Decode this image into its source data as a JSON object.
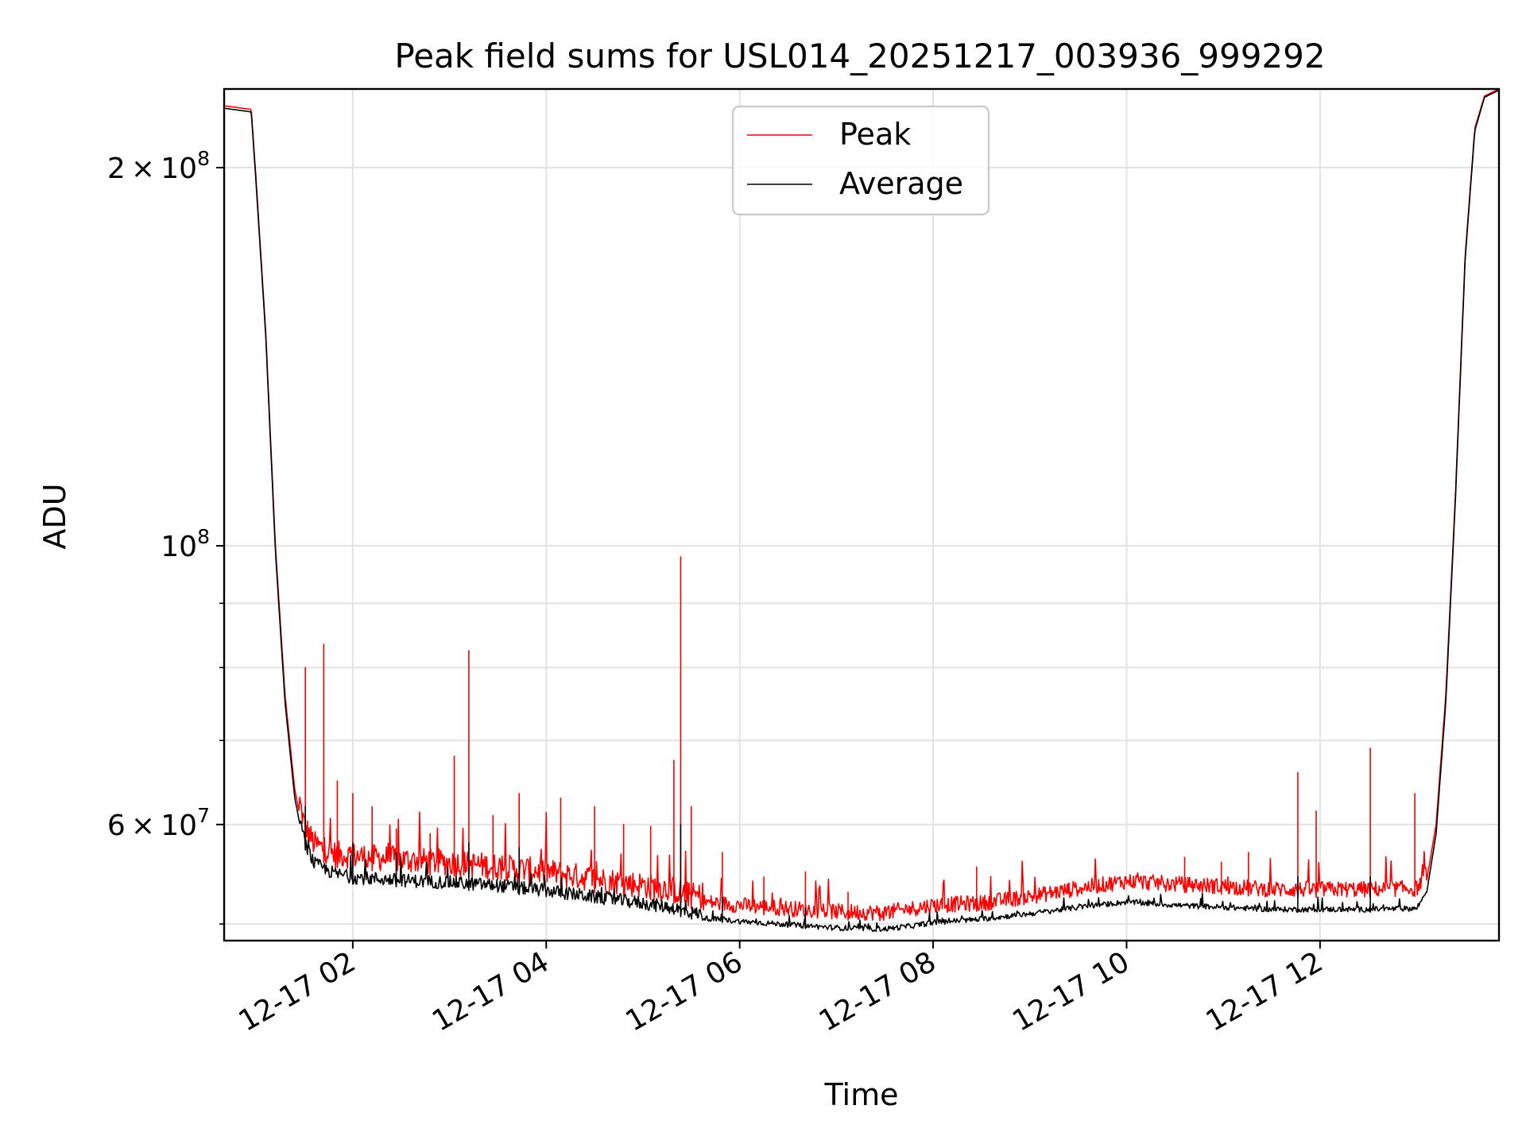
{
  "chart_data": {
    "type": "line",
    "title": "Peak field sums for USL014_20251217_003936_999292",
    "xlabel": "Time",
    "ylabel": "ADU",
    "yscale": "log",
    "xlim": [
      0.67,
      13.85
    ],
    "ylim": [
      48500000,
      231000000
    ],
    "grid": true,
    "legend_position": "upper-center",
    "x_unit": "hours since 2025-12-17 00:00",
    "x_ticks": [
      {
        "value": 2,
        "label": "12-17 02"
      },
      {
        "value": 4,
        "label": "12-17 04"
      },
      {
        "value": 6,
        "label": "12-17 06"
      },
      {
        "value": 8,
        "label": "12-17 08"
      },
      {
        "value": 10,
        "label": "12-17 10"
      },
      {
        "value": 12,
        "label": "12-17 12"
      }
    ],
    "y_major_ticks": [
      {
        "value": 60000000,
        "base": "6 × 10",
        "exp": "7"
      },
      {
        "value": 100000000,
        "base": "10",
        "exp": "8"
      },
      {
        "value": 200000000,
        "base": "2 × 10",
        "exp": "8"
      }
    ],
    "y_minor_ticks": [
      50000000,
      70000000,
      80000000,
      90000000
    ],
    "series": [
      {
        "name": "Peak",
        "color": "#ff0000",
        "baseline": [
          [
            0.67,
            224000000
          ],
          [
            0.95,
            222500000
          ],
          [
            1.0,
            196000000
          ],
          [
            1.1,
            148000000
          ],
          [
            1.2,
            100000000
          ],
          [
            1.3,
            76000000
          ],
          [
            1.4,
            64000000
          ],
          [
            1.5,
            58500000
          ],
          [
            1.6,
            56500000
          ],
          [
            1.8,
            55500000
          ],
          [
            2.0,
            55300000
          ],
          [
            2.5,
            54900000
          ],
          [
            3.0,
            54600000
          ],
          [
            3.5,
            54200000
          ],
          [
            4.0,
            53700000
          ],
          [
            4.5,
            53000000
          ],
          [
            5.0,
            52400000
          ],
          [
            5.3,
            52000000
          ],
          [
            5.5,
            51400000
          ],
          [
            6.0,
            51000000
          ],
          [
            6.5,
            50700000
          ],
          [
            7.0,
            50400000
          ],
          [
            7.5,
            50300000
          ],
          [
            7.8,
            50700000
          ],
          [
            8.0,
            51000000
          ],
          [
            8.5,
            51200000
          ],
          [
            9.0,
            51800000
          ],
          [
            9.5,
            52600000
          ],
          [
            10.0,
            53300000
          ],
          [
            10.5,
            53000000
          ],
          [
            11.0,
            52800000
          ],
          [
            11.5,
            52500000
          ],
          [
            12.0,
            52500000
          ],
          [
            12.5,
            52500000
          ],
          [
            13.0,
            52600000
          ],
          [
            13.1,
            54000000
          ],
          [
            13.2,
            60000000
          ],
          [
            13.3,
            76000000
          ],
          [
            13.4,
            110000000
          ],
          [
            13.5,
            170000000
          ],
          [
            13.6,
            215000000
          ],
          [
            13.7,
            228000000
          ],
          [
            13.85,
            231000000
          ]
        ],
        "spikes": [
          [
            1.51,
            80000000
          ],
          [
            1.7,
            83500000
          ],
          [
            1.84,
            65000000
          ],
          [
            2.0,
            63500000
          ],
          [
            2.2,
            62000000
          ],
          [
            2.45,
            59500000
          ],
          [
            2.8,
            59000000
          ],
          [
            3.05,
            68000000
          ],
          [
            3.2,
            82500000
          ],
          [
            3.45,
            61000000
          ],
          [
            3.72,
            63500000
          ],
          [
            4.15,
            63000000
          ],
          [
            4.5,
            62000000
          ],
          [
            4.8,
            60000000
          ],
          [
            5.08,
            59800000
          ],
          [
            5.32,
            67500000
          ],
          [
            5.39,
            98000000
          ],
          [
            5.5,
            62000000
          ],
          [
            5.82,
            57000000
          ],
          [
            6.25,
            54500000
          ],
          [
            6.68,
            55000000
          ],
          [
            7.12,
            53000000
          ],
          [
            7.45,
            51000000
          ],
          [
            8.45,
            55500000
          ],
          [
            10.6,
            56500000
          ],
          [
            10.98,
            56000000
          ],
          [
            11.26,
            57000000
          ],
          [
            11.77,
            66000000
          ],
          [
            11.96,
            61500000
          ],
          [
            12.52,
            69000000
          ],
          [
            12.98,
            63500000
          ]
        ]
      },
      {
        "name": "Average",
        "color": "#000000",
        "baseline": [
          [
            0.67,
            223000000
          ],
          [
            0.95,
            221500000
          ],
          [
            1.0,
            194500000
          ],
          [
            1.1,
            147000000
          ],
          [
            1.2,
            99000000
          ],
          [
            1.3,
            75000000
          ],
          [
            1.4,
            63000000
          ],
          [
            1.5,
            57500000
          ],
          [
            1.6,
            55200000
          ],
          [
            1.8,
            54200000
          ],
          [
            2.0,
            53800000
          ],
          [
            2.5,
            53500000
          ],
          [
            3.0,
            53300000
          ],
          [
            3.5,
            53000000
          ],
          [
            4.0,
            52500000
          ],
          [
            4.5,
            51900000
          ],
          [
            5.0,
            51300000
          ],
          [
            5.3,
            50900000
          ],
          [
            5.5,
            50400000
          ],
          [
            6.0,
            50000000
          ],
          [
            6.5,
            49700000
          ],
          [
            7.0,
            49400000
          ],
          [
            7.5,
            49300000
          ],
          [
            7.8,
            49600000
          ],
          [
            8.0,
            49900000
          ],
          [
            8.5,
            50200000
          ],
          [
            9.0,
            50700000
          ],
          [
            9.5,
            51300000
          ],
          [
            10.0,
            51800000
          ],
          [
            10.5,
            51500000
          ],
          [
            11.0,
            51300000
          ],
          [
            11.5,
            51100000
          ],
          [
            12.0,
            51100000
          ],
          [
            12.5,
            51100000
          ],
          [
            13.0,
            51200000
          ],
          [
            13.1,
            52800000
          ],
          [
            13.2,
            59000000
          ],
          [
            13.3,
            75000000
          ],
          [
            13.4,
            109000000
          ],
          [
            13.5,
            169000000
          ],
          [
            13.6,
            214000000
          ],
          [
            13.7,
            227500000
          ],
          [
            13.85,
            230500000
          ]
        ],
        "spikes": [
          [
            1.51,
            62000000
          ],
          [
            2.0,
            58000000
          ],
          [
            2.45,
            57000000
          ],
          [
            3.2,
            58000000
          ],
          [
            3.72,
            57500000
          ],
          [
            5.39,
            60000000
          ],
          [
            5.82,
            52500000
          ],
          [
            6.68,
            51500000
          ],
          [
            11.77,
            54500000
          ],
          [
            12.52,
            54500000
          ]
        ]
      }
    ]
  }
}
